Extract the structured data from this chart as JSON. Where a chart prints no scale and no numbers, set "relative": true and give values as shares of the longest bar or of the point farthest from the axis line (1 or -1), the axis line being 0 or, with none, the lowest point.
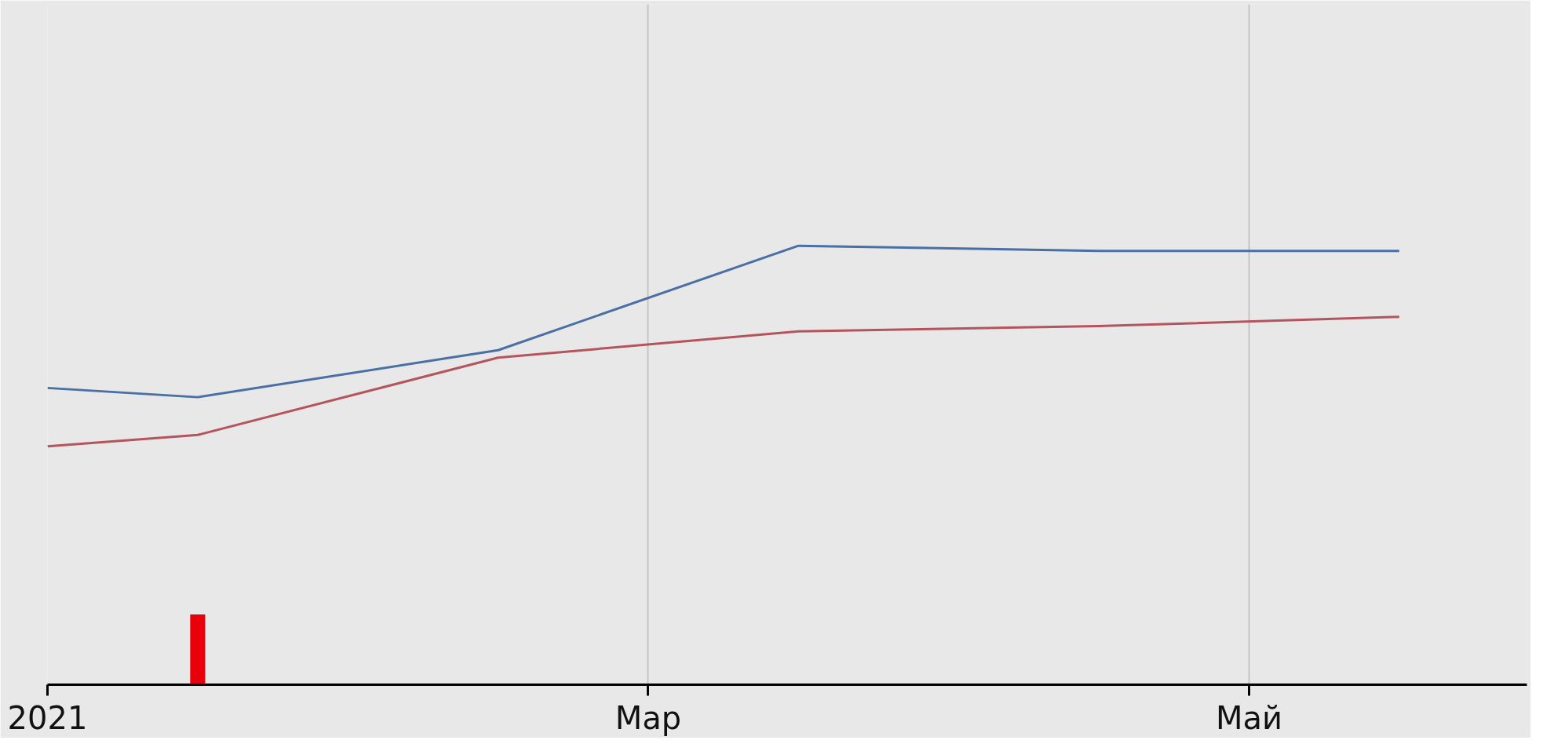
{
  "chart_data": {
    "type": "line",
    "relative": true,
    "grid": "x",
    "categories": [
      "2021",
      null,
      null,
      null,
      "Мар",
      null,
      null,
      null,
      "Май",
      null
    ],
    "series": [
      {
        "color": "#4a6fa5",
        "values": [
          0.676,
          0.655,
          null,
          0.762,
          null,
          1,
          null,
          0.988,
          null,
          0.988
        ]
      },
      {
        "color": "#b5545c",
        "values": [
          0.543,
          0.569,
          null,
          0.745,
          null,
          0.805,
          null,
          0.817,
          null,
          0.838
        ]
      },
      {
        "type": "bar",
        "color": "#e8000b",
        "values": [
          null,
          0.16,
          null,
          null,
          null,
          null,
          null,
          null,
          null,
          null
        ]
      }
    ]
  }
}
